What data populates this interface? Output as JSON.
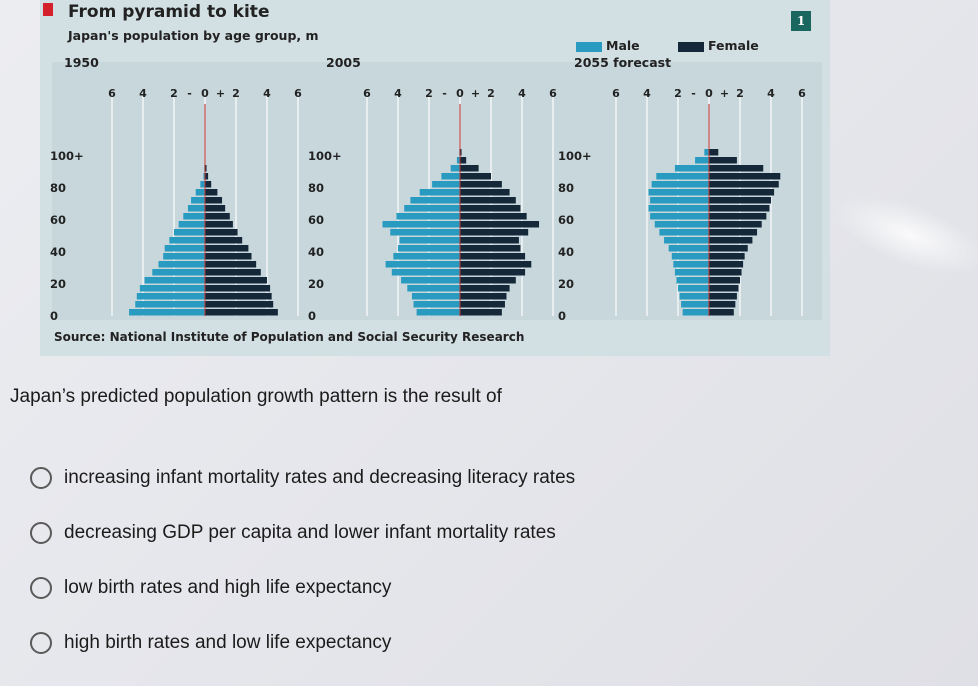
{
  "figure": {
    "number": "1",
    "title": "From pyramid to kite",
    "subtitle": "Japan's population by age group, m",
    "source": "Source: National Institute of Population and Social Security Research",
    "legend": {
      "male": "Male",
      "female": "Female"
    },
    "colors": {
      "male": "#2a9bc0",
      "female": "#14283a",
      "title_mark": "#d3202b",
      "badge": "#19675f"
    }
  },
  "chart_data": [
    {
      "type": "bar",
      "orientation": "horizontal-pyramid",
      "title": "1950",
      "x_ticks": [
        "6",
        "4",
        "2",
        "0",
        "2",
        "4",
        "6"
      ],
      "y_ticks": [
        "100+",
        "80",
        "60",
        "40",
        "20",
        "0"
      ],
      "age_groups": [
        "0-4",
        "5-9",
        "10-14",
        "15-19",
        "20-24",
        "25-29",
        "30-34",
        "35-39",
        "40-44",
        "45-49",
        "50-54",
        "55-59",
        "60-64",
        "65-69",
        "70-74",
        "75-79",
        "80-84",
        "85-89",
        "90-94",
        "95-99",
        "100+"
      ],
      "series": [
        {
          "name": "Male",
          "values": [
            4.9,
            4.5,
            4.4,
            4.2,
            3.9,
            3.4,
            3.0,
            2.7,
            2.6,
            2.3,
            2.0,
            1.7,
            1.4,
            1.1,
            0.9,
            0.6,
            0.3,
            0.1,
            0.05,
            0.02,
            0.01
          ]
        },
        {
          "name": "Female",
          "values": [
            4.7,
            4.4,
            4.3,
            4.2,
            4.0,
            3.6,
            3.3,
            3.0,
            2.8,
            2.4,
            2.1,
            1.8,
            1.6,
            1.3,
            1.1,
            0.8,
            0.4,
            0.2,
            0.1,
            0.03,
            0.02
          ]
        }
      ],
      "xlim": [
        -6,
        6
      ]
    },
    {
      "type": "bar",
      "orientation": "horizontal-pyramid",
      "title": "2005",
      "x_ticks": [
        "6",
        "4",
        "2",
        "0",
        "2",
        "4",
        "6"
      ],
      "y_ticks": [
        "100+",
        "80",
        "60",
        "40",
        "20",
        "0"
      ],
      "age_groups": [
        "0-4",
        "5-9",
        "10-14",
        "15-19",
        "20-24",
        "25-29",
        "30-34",
        "35-39",
        "40-44",
        "45-49",
        "50-54",
        "55-59",
        "60-64",
        "65-69",
        "70-74",
        "75-79",
        "80-84",
        "85-89",
        "90-94",
        "95-99",
        "100+"
      ],
      "series": [
        {
          "name": "Male",
          "values": [
            2.8,
            3.0,
            3.1,
            3.4,
            3.8,
            4.4,
            4.8,
            4.3,
            4.0,
            3.9,
            4.5,
            5.0,
            4.1,
            3.6,
            3.2,
            2.6,
            1.8,
            1.2,
            0.6,
            0.2,
            0.05
          ]
        },
        {
          "name": "Female",
          "values": [
            2.7,
            2.9,
            3.0,
            3.2,
            3.6,
            4.2,
            4.6,
            4.2,
            3.9,
            3.8,
            4.4,
            5.1,
            4.3,
            3.9,
            3.6,
            3.2,
            2.7,
            2.0,
            1.2,
            0.4,
            0.1
          ]
        }
      ],
      "xlim": [
        -6,
        6
      ]
    },
    {
      "type": "bar",
      "orientation": "horizontal-pyramid",
      "title": "2055 forecast",
      "x_ticks": [
        "6",
        "4",
        "2",
        "0",
        "2",
        "4",
        "6"
      ],
      "y_ticks": [
        "100+",
        "80",
        "60",
        "40",
        "20",
        "0"
      ],
      "age_groups": [
        "0-4",
        "5-9",
        "10-14",
        "15-19",
        "20-24",
        "25-29",
        "30-34",
        "35-39",
        "40-44",
        "45-49",
        "50-54",
        "55-59",
        "60-64",
        "65-69",
        "70-74",
        "75-79",
        "80-84",
        "85-89",
        "90-94",
        "95-99",
        "100+"
      ],
      "series": [
        {
          "name": "Male",
          "values": [
            1.7,
            1.8,
            1.9,
            2.0,
            2.1,
            2.2,
            2.3,
            2.4,
            2.6,
            2.9,
            3.2,
            3.5,
            3.8,
            3.9,
            3.8,
            3.9,
            3.7,
            3.4,
            2.2,
            0.9,
            0.3
          ]
        },
        {
          "name": "Female",
          "values": [
            1.6,
            1.7,
            1.8,
            1.9,
            2.0,
            2.1,
            2.2,
            2.3,
            2.5,
            2.8,
            3.1,
            3.4,
            3.7,
            3.9,
            4.0,
            4.2,
            4.5,
            4.6,
            3.5,
            1.8,
            0.6
          ]
        }
      ],
      "xlim": [
        -6,
        6
      ]
    }
  ],
  "question": {
    "prompt": "Japan’s predicted population growth pattern is the result of",
    "options": [
      "increasing infant mortality rates and decreasing literacy rates",
      "decreasing GDP per capita and lower infant mortality rates",
      "low birth rates and high life expectancy",
      "high birth rates and low life expectancy"
    ]
  }
}
